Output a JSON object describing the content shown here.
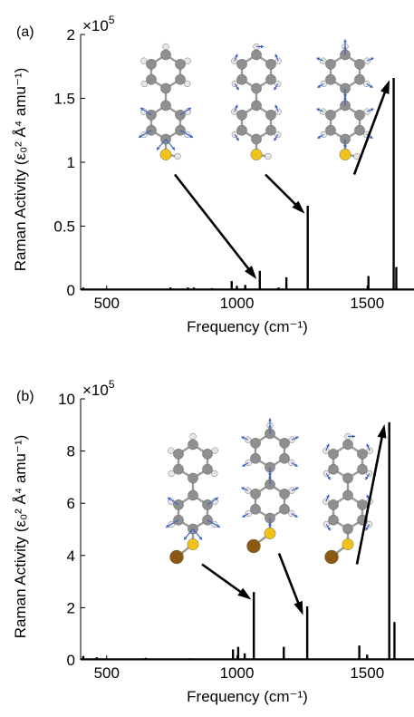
{
  "chart_data": [
    {
      "type": "line",
      "panel_label": "(a)",
      "multiplier_base": "×10",
      "multiplier_exp": "5",
      "xlabel": "Frequency (cm⁻¹)",
      "ylabel": "Raman Activity (ε₀² Å⁴ amu⁻¹)",
      "xlim": [
        400,
        1680
      ],
      "ylim": [
        0,
        2
      ],
      "xticks": [
        500,
        1000,
        1500
      ],
      "yticks": [
        0,
        0.5,
        1,
        1.5,
        2
      ],
      "ytick_labels": [
        "0",
        "0.5",
        "1",
        "1.5",
        "2"
      ],
      "peaks": [
        {
          "x": 410,
          "y": 0.02
        },
        {
          "x": 610,
          "y": 0.01
        },
        {
          "x": 745,
          "y": 0.02
        },
        {
          "x": 812,
          "y": 0.02
        },
        {
          "x": 835,
          "y": 0.02
        },
        {
          "x": 905,
          "y": 0.015
        },
        {
          "x": 980,
          "y": 0.07
        },
        {
          "x": 1000,
          "y": 0.03
        },
        {
          "x": 1032,
          "y": 0.04
        },
        {
          "x": 1088,
          "y": 0.15
        },
        {
          "x": 1160,
          "y": 0.02
        },
        {
          "x": 1190,
          "y": 0.1
        },
        {
          "x": 1272,
          "y": 0.66
        },
        {
          "x": 1330,
          "y": 0.01
        },
        {
          "x": 1505,
          "y": 0.11
        },
        {
          "x": 1602,
          "y": 1.66
        },
        {
          "x": 1612,
          "y": 0.18
        }
      ],
      "annotated_peaks": [
        1088,
        1272,
        1602
      ]
    },
    {
      "type": "line",
      "panel_label": "(b)",
      "multiplier_base": "×10",
      "multiplier_exp": "5",
      "xlabel": "Frequency (cm⁻¹)",
      "ylabel": "Raman Activity (ε₀² Å⁴ amu⁻¹)",
      "xlim": [
        400,
        1680
      ],
      "ylim": [
        0,
        10
      ],
      "xticks": [
        500,
        1000,
        1500
      ],
      "yticks": [
        0,
        2,
        4,
        6,
        8,
        10
      ],
      "ytick_labels": [
        "0",
        "2",
        "4",
        "6",
        "8",
        "10"
      ],
      "peaks": [
        {
          "x": 410,
          "y": 0.15
        },
        {
          "x": 462,
          "y": 0.1
        },
        {
          "x": 650,
          "y": 0.08
        },
        {
          "x": 820,
          "y": 0.06
        },
        {
          "x": 985,
          "y": 0.4
        },
        {
          "x": 1005,
          "y": 0.5
        },
        {
          "x": 1030,
          "y": 0.25
        },
        {
          "x": 1065,
          "y": 2.6
        },
        {
          "x": 1180,
          "y": 0.5
        },
        {
          "x": 1270,
          "y": 2.05
        },
        {
          "x": 1470,
          "y": 0.55
        },
        {
          "x": 1500,
          "y": 0.2
        },
        {
          "x": 1585,
          "y": 9.1
        },
        {
          "x": 1605,
          "y": 1.45
        }
      ],
      "annotated_peaks": [
        1065,
        1270,
        1585
      ]
    }
  ],
  "colors": {
    "carbon": "#8f8f8f",
    "hydrogen": "#e6e6e6",
    "sulfur": "#f0c21a",
    "gold_atom": "#8a5a12",
    "bond": "#9a9a9a",
    "vector": "#3a5fbf",
    "spectrum": "#000000"
  }
}
